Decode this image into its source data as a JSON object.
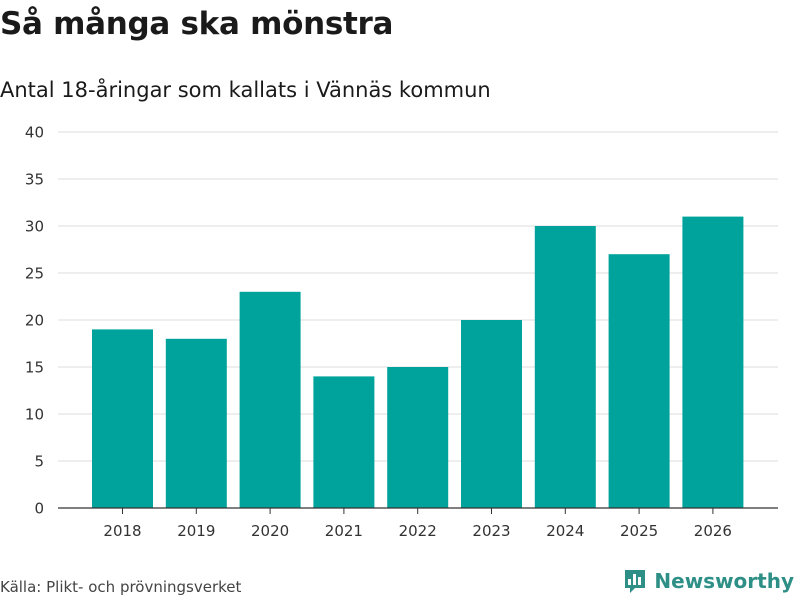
{
  "header": {
    "title": "Så många ska mönstra",
    "subtitle": "Antal 18-åringar som kallats i Vännäs kommun"
  },
  "footer": {
    "source": "Källa: Plikt- och prövningsverket",
    "brand_name": "Newsworthy",
    "brand_icon": "bar-chart-icon"
  },
  "colors": {
    "bar": "#00a39b",
    "grid": "#dddddd",
    "axis": "#333333",
    "brand": "#2e8f86"
  },
  "chart_data": {
    "type": "bar",
    "title": "Så många ska mönstra",
    "subtitle": "Antal 18-åringar som kallats i Vännäs kommun",
    "xlabel": "",
    "ylabel": "",
    "categories": [
      "2018",
      "2019",
      "2020",
      "2021",
      "2022",
      "2023",
      "2024",
      "2025",
      "2026"
    ],
    "values": [
      19,
      18,
      23,
      14,
      15,
      20,
      30,
      27,
      31
    ],
    "ylim": [
      0,
      40
    ],
    "yticks": [
      0,
      5,
      10,
      15,
      20,
      25,
      30,
      35,
      40
    ],
    "grid": true,
    "legend": "none"
  }
}
